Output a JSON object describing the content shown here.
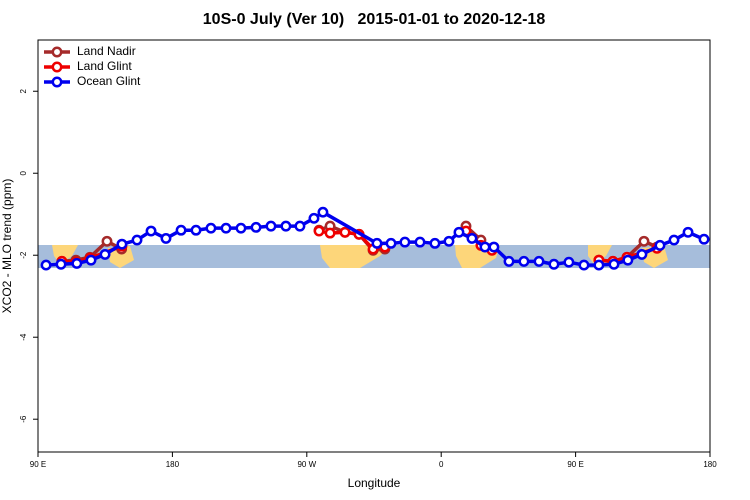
{
  "chart_data": {
    "type": "line",
    "title": "10S-0 July (Ver 10)   2015-01-01 to 2020-12-18",
    "x_label": "Longitude",
    "y_label": "XCO2 - MLO trend (ppm)",
    "xlim": [
      90,
      540
    ],
    "ylim": [
      -6.8,
      3.25
    ],
    "xticks": [
      {
        "value": 90,
        "label": "90 E"
      },
      {
        "value": 180,
        "label": "180"
      },
      {
        "value": 270,
        "label": "90 W"
      },
      {
        "value": 360,
        "label": "0"
      },
      {
        "value": 450,
        "label": "90 E"
      },
      {
        "value": 540,
        "label": "180"
      }
    ],
    "yticks": [
      -6,
      -4,
      -2,
      0,
      2
    ],
    "legend": "top-left",
    "series": [
      {
        "name": "Land Nadir",
        "color": "#a52a2a",
        "x": [
          106,
          115.4,
          124.8,
          136.2,
          146,
          null,
          278.2,
          285.6,
          295.6,
          305,
          314.4,
          322.3,
          null,
          376.6,
          386.6,
          394,
          null,
          465.6,
          475,
          484.4,
          495.8,
          504.5
        ],
        "values": [
          -2.15,
          -2.12,
          -2.05,
          -1.66,
          -1.85,
          null,
          -1.39,
          -1.29,
          -1.44,
          -1.49,
          -1.88,
          -1.85,
          null,
          -1.29,
          -1.63,
          -1.83,
          null,
          -2.12,
          -2.15,
          -2.05,
          -1.66,
          -1.8
        ]
      },
      {
        "name": "Land Glint",
        "color": "#ee0000",
        "x": [
          106,
          115.4,
          124.8,
          146.2,
          null,
          278.2,
          285.6,
          295.6,
          305,
          314.4,
          322.3,
          null,
          376.6,
          386.6,
          394,
          null,
          465.6,
          475,
          484.4,
          504.5
        ],
        "values": [
          -2.15,
          -2.17,
          -2.07,
          -1.78,
          null,
          -1.41,
          -1.46,
          -1.44,
          -1.49,
          -1.85,
          -1.8,
          null,
          -1.41,
          -1.76,
          -1.88,
          null,
          -2.12,
          -2.15,
          -2.05,
          -1.83
        ]
      },
      {
        "name": "Ocean Glint",
        "color": "#0000ee",
        "x": [
          95.4,
          105.4,
          116,
          125.5,
          134.9,
          146.2,
          156.3,
          165.7,
          175.7,
          185.8,
          195.8,
          205.8,
          215.9,
          225.9,
          236,
          246,
          256,
          265.4,
          274.8,
          280.8,
          317,
          326.4,
          335.7,
          345.8,
          355.8,
          365.2,
          371.9,
          380.6,
          389.3,
          395.3,
          405.4,
          415.4,
          425.5,
          435.5,
          445.5,
          455.6,
          465.6,
          475.7,
          485,
          494.4,
          506.5,
          515.9,
          525.3,
          536
        ],
        "values": [
          -2.24,
          -2.22,
          -2.2,
          -2.12,
          -1.98,
          -1.73,
          -1.63,
          -1.41,
          -1.59,
          -1.39,
          -1.39,
          -1.34,
          -1.34,
          -1.34,
          -1.32,
          -1.29,
          -1.29,
          -1.29,
          -1.1,
          -0.95,
          -1.71,
          -1.71,
          -1.68,
          -1.68,
          -1.71,
          -1.66,
          -1.44,
          -1.59,
          -1.8,
          -1.8,
          -2.15,
          -2.15,
          -2.15,
          -2.22,
          -2.17,
          -2.24,
          -2.24,
          -2.22,
          -2.12,
          -1.98,
          -1.76,
          -1.63,
          -1.44,
          -1.61
        ]
      }
    ]
  }
}
